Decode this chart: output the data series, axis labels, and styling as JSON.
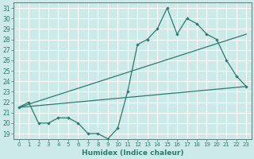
{
  "xlabel": "Humidex (Indice chaleur)",
  "bg_color": "#cceae7",
  "grid_color": "#ffffff",
  "line_color": "#2d7a6e",
  "xlim": [
    -0.5,
    23.5
  ],
  "ylim": [
    18.5,
    31.5
  ],
  "xticks": [
    0,
    1,
    2,
    3,
    4,
    5,
    6,
    7,
    8,
    9,
    10,
    11,
    12,
    13,
    14,
    15,
    16,
    17,
    18,
    19,
    20,
    21,
    22,
    23
  ],
  "yticks": [
    19,
    20,
    21,
    22,
    23,
    24,
    25,
    26,
    27,
    28,
    29,
    30,
    31
  ],
  "main_series": {
    "x": [
      0,
      1,
      2,
      3,
      4,
      5,
      6,
      7,
      8,
      9,
      10,
      11,
      12,
      13,
      14,
      15,
      16,
      17,
      18,
      19,
      20,
      21,
      22,
      23
    ],
    "y": [
      21.5,
      22.0,
      20.0,
      20.0,
      20.5,
      20.5,
      20.0,
      19.0,
      19.0,
      18.5,
      19.5,
      23.0,
      27.5,
      28.0,
      29.0,
      31.0,
      28.5,
      30.0,
      29.5,
      28.5,
      28.0,
      26.0,
      24.5,
      23.5
    ]
  },
  "line1": {
    "x": [
      0,
      23
    ],
    "y": [
      21.5,
      28.5
    ]
  },
  "line2": {
    "x": [
      0,
      23
    ],
    "y": [
      21.5,
      23.5
    ]
  }
}
